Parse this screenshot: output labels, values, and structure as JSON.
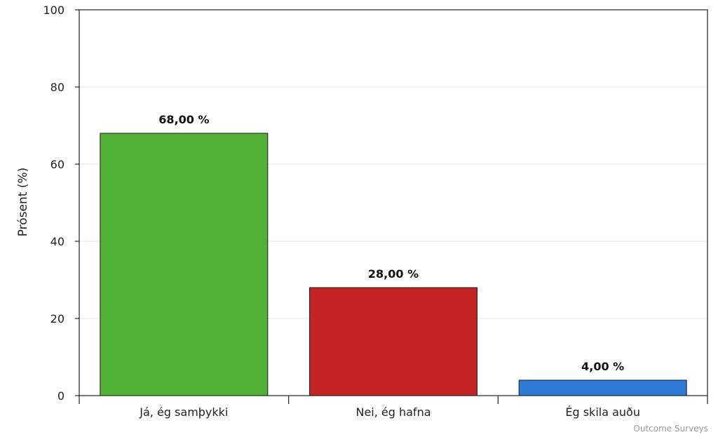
{
  "chart_data": {
    "type": "bar",
    "categories": [
      "Já, ég samþykki",
      "Nei, ég hafna",
      "Ég skila auðu"
    ],
    "values": [
      68,
      28,
      4
    ],
    "data_labels": [
      "68,00 %",
      "28,00 %",
      "4,00 %"
    ],
    "colors": [
      "#52b132",
      "#c32527",
      "#2d7ad6"
    ],
    "ylabel": "Prósent (%)",
    "ylim": [
      0,
      100
    ],
    "yticks": [
      0,
      20,
      40,
      60,
      80,
      100
    ],
    "grid": true,
    "legend": "none"
  },
  "credit": "Outcome Surveys"
}
